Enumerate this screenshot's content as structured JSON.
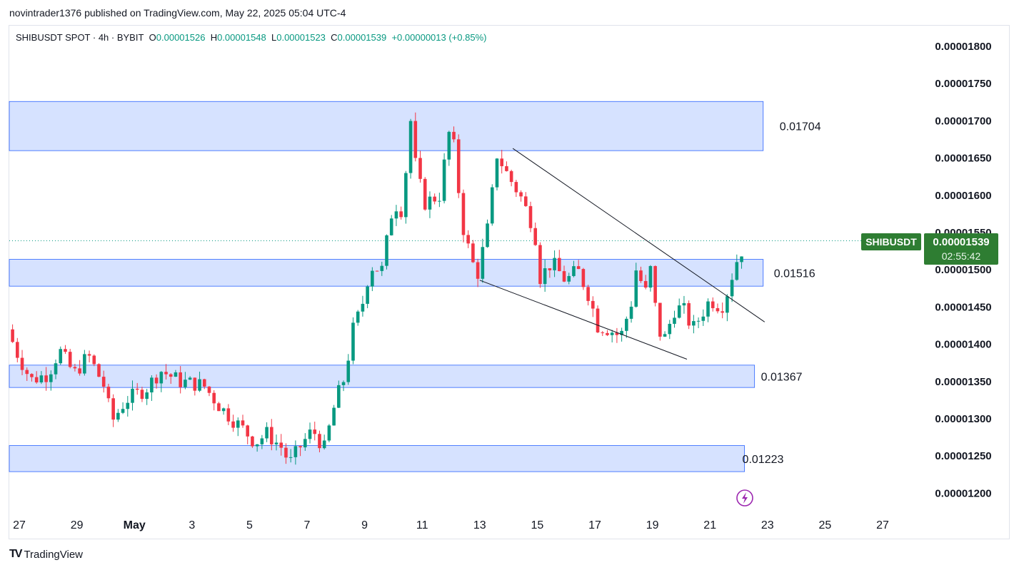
{
  "header": {
    "published": "novintrader1376 published on TradingView.com, May 22, 2025 05:04 UTC-4"
  },
  "legend": {
    "symbol": "SHIBUSDT SPOT · 4h · BYBIT",
    "o_label": "O",
    "o_value": "0.00001526",
    "h_label": "H",
    "h_value": "0.00001548",
    "l_label": "L",
    "l_value": "0.00001523",
    "c_label": "C",
    "c_value": "0.00001539",
    "change": "+0.00000013 (+0.85%)"
  },
  "price_tag": {
    "symbol": "SHIBUSDT",
    "price": "0.00001539",
    "countdown": "02:55:42"
  },
  "footer": {
    "brand": "TradingView",
    "logo": "TV"
  },
  "colors": {
    "up": "#089981",
    "down": "#f23645",
    "zone_fill": "#d6e2ff",
    "zone_stroke": "#2962ff",
    "tag_bg": "#2e7d32"
  },
  "chart_data": {
    "type": "candlestick",
    "y_range": [
      1.17e-05,
      1.84e-05
    ],
    "y_ticks": [
      "0.00001200",
      "0.00001250",
      "0.00001300",
      "0.00001350",
      "0.00001400",
      "0.00001450",
      "0.00001500",
      "0.00001550",
      "0.00001600",
      "0.00001650",
      "0.00001700",
      "0.00001750",
      "0.00001800"
    ],
    "x_ticks": [
      {
        "day": -3,
        "label": "27"
      },
      {
        "day": -1,
        "label": "29"
      },
      {
        "day": 1,
        "label": "May"
      },
      {
        "day": 3,
        "label": "3"
      },
      {
        "day": 5,
        "label": "5"
      },
      {
        "day": 7,
        "label": "7"
      },
      {
        "day": 9,
        "label": "9"
      },
      {
        "day": 11,
        "label": "11"
      },
      {
        "day": 13,
        "label": "13"
      },
      {
        "day": 15,
        "label": "15"
      },
      {
        "day": 17,
        "label": "17"
      },
      {
        "day": 19,
        "label": "19"
      },
      {
        "day": 21,
        "label": "21"
      },
      {
        "day": 23,
        "label": "23"
      },
      {
        "day": 25,
        "label": "25"
      },
      {
        "day": 27,
        "label": "27"
      }
    ],
    "zones": [
      {
        "label": "0.01704",
        "top": 1.726e-05,
        "bottom": 1.66e-05,
        "end_day": 22.85
      },
      {
        "label": "0.01516",
        "top": 1.514e-05,
        "bottom": 1.478e-05,
        "end_day": 22.85
      },
      {
        "label": "0.01367",
        "top": 1.372e-05,
        "bottom": 1.342e-05,
        "end_day": 22.55
      },
      {
        "label": "0.01223",
        "top": 1.264e-05,
        "bottom": 1.229e-05,
        "end_day": 22.2
      }
    ],
    "trendlines": [
      {
        "from": [
          14.15,
          1.663e-05
        ],
        "to": [
          22.9,
          1.43e-05
        ]
      },
      {
        "from": [
          13.0,
          1.486e-05
        ],
        "to": [
          20.2,
          1.38e-05
        ]
      }
    ],
    "last_price": 1.539e-05,
    "anchors": [
      [
        -3.4,
        1.42e-05,
        "n"
      ],
      [
        -3.1,
        1.39e-05,
        "n"
      ],
      [
        -2.6,
        1.352e-05,
        "n"
      ],
      [
        -2.0,
        1.36e-05,
        "n"
      ],
      [
        -1.6,
        1.392e-05,
        "n"
      ],
      [
        -1.1,
        1.36e-05,
        "n"
      ],
      [
        -0.6,
        1.385e-05,
        "n"
      ],
      [
        0.0,
        1.34e-05,
        "n"
      ],
      [
        0.2,
        1.295e-05,
        "n"
      ],
      [
        0.7,
        1.325e-05,
        "n"
      ],
      [
        1.4,
        1.34e-05,
        "n"
      ],
      [
        1.9,
        1.365e-05,
        "n"
      ],
      [
        2.6,
        1.35e-05,
        "n"
      ],
      [
        3.4,
        1.345e-05,
        "n"
      ],
      [
        4.0,
        1.315e-05,
        "n"
      ],
      [
        4.8,
        1.285e-05,
        "n"
      ],
      [
        5.2,
        1.268e-05,
        "n"
      ],
      [
        5.6,
        1.28e-05,
        "n"
      ],
      [
        6.1,
        1.262e-05,
        "n"
      ],
      [
        6.4,
        1.24e-05,
        "n"
      ],
      [
        6.8,
        1.265e-05,
        "n"
      ],
      [
        7.2,
        1.285e-05,
        "n"
      ],
      [
        7.6,
        1.26e-05,
        "n"
      ],
      [
        8.0,
        1.325e-05,
        "n"
      ],
      [
        8.3,
        1.355e-05,
        "n"
      ],
      [
        8.6,
        1.42e-05,
        "n"
      ],
      [
        8.9,
        1.45e-05,
        "n"
      ],
      [
        9.2,
        1.505e-05,
        "n"
      ],
      [
        9.6,
        1.5e-05,
        "n"
      ],
      [
        10.0,
        1.59e-05,
        "n"
      ],
      [
        10.3,
        1.58e-05,
        "n"
      ],
      [
        10.6,
        1.7e-05,
        "n"
      ],
      [
        10.8,
        1.63e-05,
        "n"
      ],
      [
        11.1,
        1.59e-05,
        "n"
      ],
      [
        11.6,
        1.6e-05,
        "n"
      ],
      [
        12.0,
        1.7e-05,
        "n"
      ],
      [
        12.4,
        1.56e-05,
        "n"
      ],
      [
        12.6,
        1.53e-05,
        "n"
      ],
      [
        12.9,
        1.49e-05,
        "n"
      ],
      [
        13.3,
        1.56e-05,
        "n"
      ],
      [
        13.6,
        1.655e-05,
        "n"
      ],
      [
        14.0,
        1.625e-05,
        "n"
      ],
      [
        14.4,
        1.6e-05,
        "n"
      ],
      [
        14.9,
        1.555e-05,
        "n"
      ],
      [
        15.1,
        1.49e-05,
        "n"
      ],
      [
        15.5,
        1.51e-05,
        "n"
      ],
      [
        16.0,
        1.485e-05,
        "n"
      ],
      [
        16.4,
        1.5e-05,
        "n"
      ],
      [
        16.8,
        1.465e-05,
        "n"
      ],
      [
        17.1,
        1.425e-05,
        "n"
      ],
      [
        17.5,
        1.42e-05,
        "n"
      ],
      [
        17.9,
        1.41e-05,
        "n"
      ],
      [
        18.3,
        1.46e-05,
        "n"
      ],
      [
        18.5,
        1.52e-05,
        "n"
      ],
      [
        18.7,
        1.45e-05,
        "n"
      ],
      [
        18.9,
        1.51e-05,
        "n"
      ],
      [
        19.2,
        1.42e-05,
        "n"
      ],
      [
        19.4,
        1.405e-05,
        "n"
      ],
      [
        19.8,
        1.45e-05,
        "n"
      ],
      [
        20.1,
        1.445e-05,
        "n"
      ],
      [
        20.4,
        1.42e-05,
        "n"
      ],
      [
        20.7,
        1.44e-05,
        "n"
      ],
      [
        21.0,
        1.46e-05,
        "n"
      ],
      [
        21.4,
        1.45e-05,
        "n"
      ],
      [
        21.6,
        1.47e-05,
        "n"
      ],
      [
        21.9,
        1.51e-05,
        "n"
      ],
      [
        22.1,
        1.526e-05,
        "n"
      ],
      [
        22.25,
        1.539e-05,
        "n"
      ]
    ]
  }
}
